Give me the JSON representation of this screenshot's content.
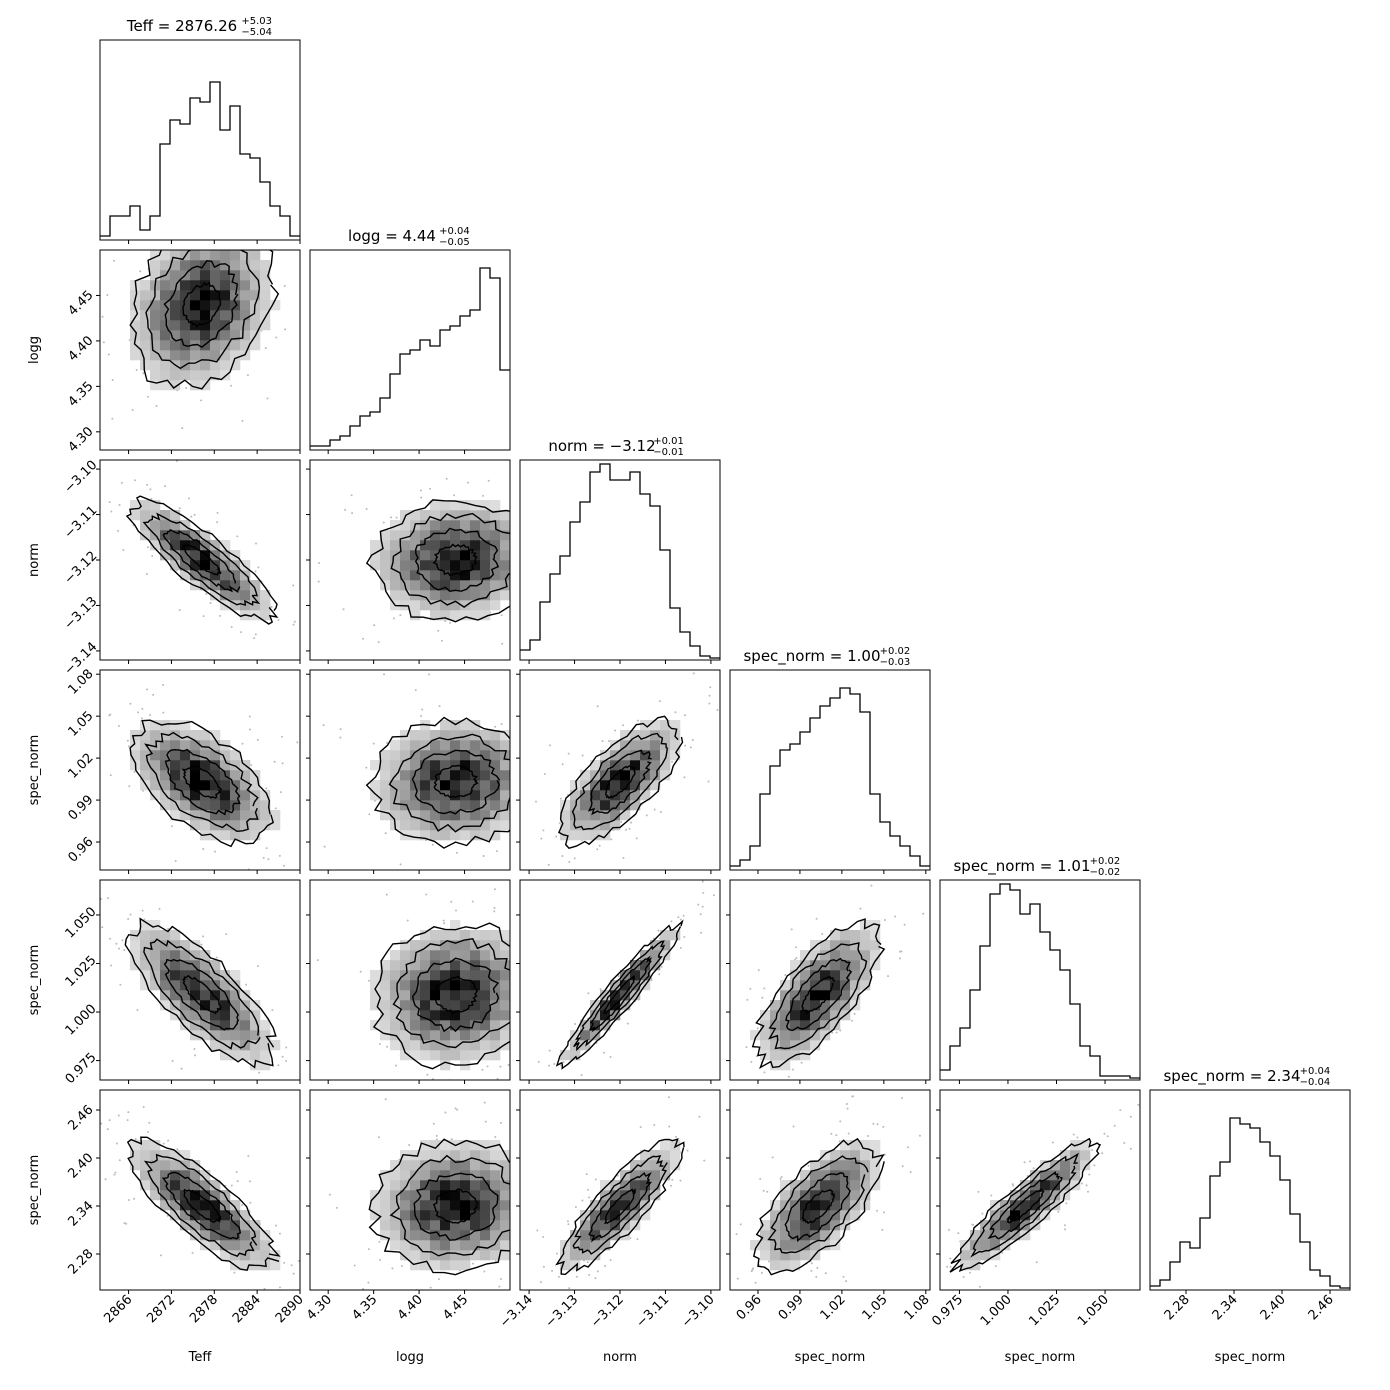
{
  "chart_data": {
    "type": "corner",
    "parameters": [
      {
        "name": "Teff",
        "label": "Teff",
        "range": [
          2862,
          2890
        ],
        "ticks": [
          "2866",
          "2872",
          "2878",
          "2884",
          "2890"
        ],
        "tick_values": [
          2866,
          2872,
          2878,
          2884,
          2890
        ],
        "median": "2876.26",
        "plus": "+5.03",
        "minus": "−5.04",
        "title_prefix": "Teff = ",
        "mean": 2876.26,
        "sd": 5.0
      },
      {
        "name": "logg",
        "label": "logg",
        "range": [
          4.28,
          4.5
        ],
        "ticks": [
          "4.30",
          "4.35",
          "4.40",
          "4.45"
        ],
        "tick_values": [
          4.3,
          4.35,
          4.4,
          4.45
        ],
        "median": "4.44",
        "plus": "+0.04",
        "minus": "−0.05",
        "title_prefix": "logg = ",
        "mean": 4.44,
        "sd": 0.045
      },
      {
        "name": "norm",
        "label": "norm",
        "range": [
          -3.142,
          -3.098
        ],
        "ticks": [
          "−3.14",
          "−3.13",
          "−3.12",
          "−3.11",
          "−3.10"
        ],
        "tick_values": [
          -3.14,
          -3.13,
          -3.12,
          -3.11,
          -3.1
        ],
        "median": "−3.12",
        "plus": "+0.01",
        "minus": "−0.01",
        "title_prefix": "norm = ",
        "mean": -3.12,
        "sd": 0.0065
      },
      {
        "name": "spec_norm",
        "label": "spec_norm",
        "range": [
          0.94,
          1.083
        ],
        "ticks": [
          "0.96",
          "0.99",
          "1.02",
          "1.05",
          "1.08"
        ],
        "tick_values": [
          0.96,
          0.99,
          1.02,
          1.05,
          1.08
        ],
        "median": "1.00",
        "plus": "+0.02",
        "minus": "−0.03",
        "title_prefix": "spec_norm = ",
        "mean": 1.003,
        "sd": 0.022
      },
      {
        "name": "spec_norm",
        "label": "spec_norm",
        "range": [
          0.965,
          1.068
        ],
        "ticks": [
          "0.975",
          "1.000",
          "1.025",
          "1.050"
        ],
        "tick_values": [
          0.975,
          1.0,
          1.025,
          1.05
        ],
        "median": "1.01",
        "plus": "+0.02",
        "minus": "−0.02",
        "title_prefix": "spec_norm = ",
        "mean": 1.009,
        "sd": 0.018
      },
      {
        "name": "spec_norm",
        "label": "spec_norm",
        "range": [
          2.235,
          2.485
        ],
        "ticks": [
          "2.28",
          "2.34",
          "2.40",
          "2.46"
        ],
        "tick_values": [
          2.28,
          2.34,
          2.4,
          2.46
        ],
        "median": "2.34",
        "plus": "+0.04",
        "minus": "−0.04",
        "title_prefix": "spec_norm = ",
        "mean": 2.34,
        "sd": 0.04
      }
    ],
    "correlations": [
      [
        1,
        0.25,
        -0.85,
        -0.55,
        -0.75,
        -0.8
      ],
      [
        0.25,
        1,
        0.05,
        0.05,
        0.05,
        0.05
      ],
      [
        -0.85,
        0.05,
        1,
        0.7,
        0.95,
        0.85
      ],
      [
        -0.55,
        0.05,
        0.7,
        1,
        0.7,
        0.65
      ],
      [
        -0.75,
        0.05,
        0.95,
        0.7,
        1,
        0.9
      ],
      [
        -0.8,
        0.05,
        0.85,
        0.65,
        0.9,
        1
      ]
    ],
    "histograms": [
      [
        0.02,
        0.12,
        0.12,
        0.17,
        0.05,
        0.12,
        0.48,
        0.6,
        0.58,
        0.71,
        0.69,
        0.79,
        0.55,
        0.67,
        0.43,
        0.41,
        0.29,
        0.17,
        0.12,
        0.02
      ],
      [
        0.02,
        0.02,
        0.05,
        0.07,
        0.12,
        0.17,
        0.19,
        0.26,
        0.38,
        0.48,
        0.5,
        0.55,
        0.52,
        0.6,
        0.62,
        0.67,
        0.7,
        0.91,
        0.86,
        0.4
      ],
      [
        0.05,
        0.1,
        0.29,
        0.43,
        0.52,
        0.69,
        0.79,
        0.94,
        0.98,
        0.9,
        0.9,
        0.94,
        0.83,
        0.77,
        0.55,
        0.26,
        0.14,
        0.07,
        0.02,
        0.01
      ],
      [
        0.02,
        0.05,
        0.12,
        0.38,
        0.52,
        0.6,
        0.63,
        0.69,
        0.76,
        0.82,
        0.86,
        0.91,
        0.88,
        0.79,
        0.38,
        0.24,
        0.17,
        0.12,
        0.07,
        0.02
      ],
      [
        0.05,
        0.17,
        0.26,
        0.45,
        0.67,
        0.93,
        0.98,
        0.95,
        0.83,
        0.88,
        0.74,
        0.65,
        0.55,
        0.38,
        0.17,
        0.12,
        0.02,
        0.02,
        0.02,
        0.01
      ],
      [
        0.02,
        0.05,
        0.14,
        0.24,
        0.21,
        0.36,
        0.57,
        0.64,
        0.86,
        0.83,
        0.81,
        0.74,
        0.67,
        0.55,
        0.38,
        0.24,
        0.1,
        0.07,
        0.02,
        0.01
      ]
    ],
    "colors": {
      "line": "#000000",
      "hist2d": "#404040",
      "points": "#aaaaaa",
      "background": "#ffffff"
    },
    "grid": false
  }
}
